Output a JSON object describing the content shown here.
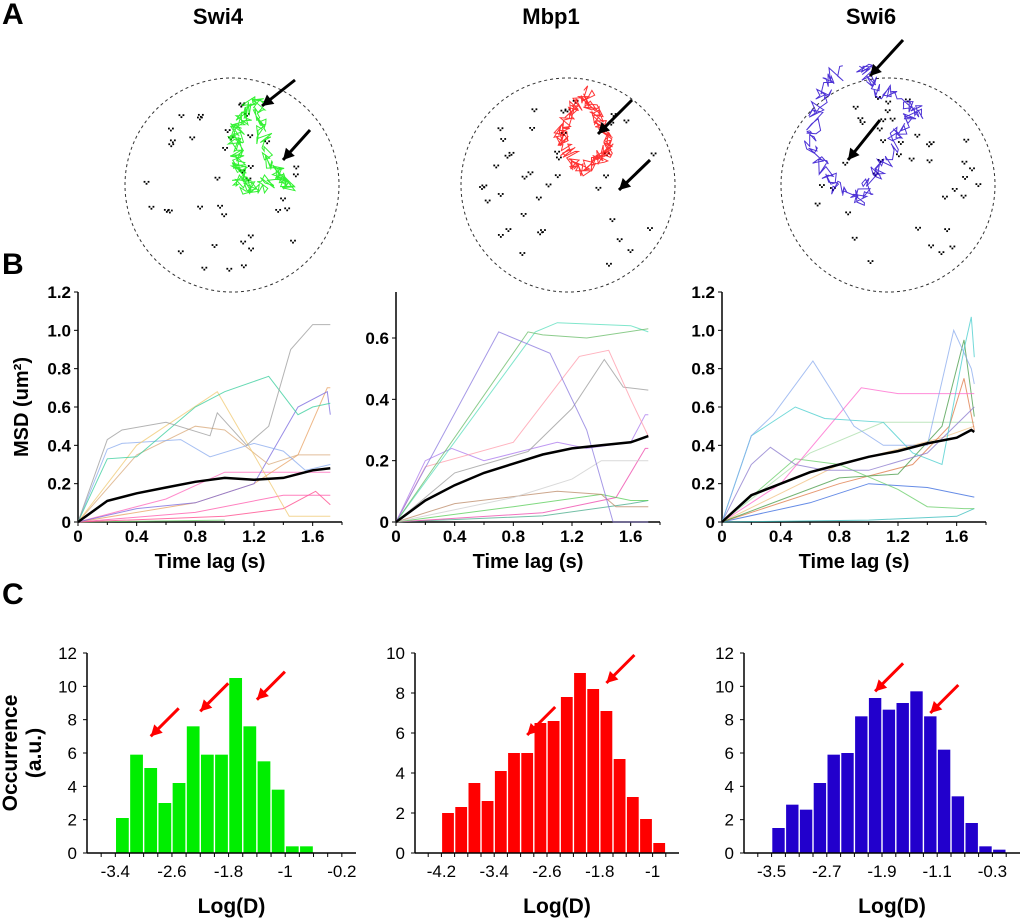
{
  "panels": {
    "A": "A",
    "B": "B",
    "C": "C"
  },
  "proteins": [
    "Swi4",
    "Mbp1",
    "Swi6"
  ],
  "colors": {
    "Swi4": "#00ee00",
    "Mbp1": "#ff0000",
    "Swi6": "#2200cc",
    "arrow_red": "#ff0000",
    "mean": "#000000"
  },
  "chart_data": [
    {
      "type": "scatter",
      "panel": "A",
      "title": "Swi4",
      "description": "Single-molecule track (green) over nuclear outline (dashed circle) with black localization spots; 2 arrows"
    },
    {
      "type": "scatter",
      "panel": "A",
      "title": "Mbp1",
      "description": "Single-molecule track (red) over nuclear outline with black localization spots; 2 arrows"
    },
    {
      "type": "scatter",
      "panel": "A",
      "title": "Swi6",
      "description": "Single-molecule track (blue) over nuclear outline with black localization spots; 2 arrows"
    },
    {
      "type": "line",
      "panel": "B",
      "protein": "Swi4",
      "xlabel": "Time lag (s)",
      "ylabel": "MSD (um²)",
      "xlim": [
        0,
        1.8
      ],
      "ylim": [
        0,
        1.2
      ],
      "xticks": [
        "0",
        "0.4",
        "0.8",
        "1.2",
        "1.6"
      ],
      "yticks": [
        "0",
        "0.2",
        "0.4",
        "0.6",
        "0.8",
        "1.0",
        "1.2"
      ],
      "series": [
        {
          "name": "mean",
          "color": "#000000",
          "x": [
            0,
            0.2,
            0.4,
            0.6,
            0.8,
            1.0,
            1.2,
            1.4,
            1.6,
            1.72
          ],
          "y": [
            0,
            0.11,
            0.15,
            0.18,
            0.21,
            0.23,
            0.22,
            0.23,
            0.27,
            0.28
          ]
        },
        {
          "name": "track-gray",
          "color": "#999999",
          "x": [
            0,
            0.2,
            0.3,
            0.6,
            0.9,
            0.95,
            1.15,
            1.3,
            1.45,
            1.6,
            1.72
          ],
          "y": [
            0,
            0.43,
            0.48,
            0.52,
            0.45,
            0.57,
            0.4,
            0.5,
            0.9,
            1.03,
            1.03
          ]
        },
        {
          "name": "track-teal",
          "color": "#33cc99",
          "x": [
            0,
            0.2,
            0.4,
            0.8,
            1.0,
            1.3,
            1.5,
            1.6,
            1.72
          ],
          "y": [
            0,
            0.33,
            0.34,
            0.6,
            0.68,
            0.76,
            0.56,
            0.6,
            0.62
          ]
        },
        {
          "name": "track-yellow",
          "color": "#f0c870",
          "x": [
            0,
            0.4,
            0.95,
            1.2,
            1.44,
            1.72
          ],
          "y": [
            0,
            0.4,
            0.68,
            0.35,
            0.03,
            0.03
          ]
        },
        {
          "name": "track-lightblue",
          "color": "#88aaee",
          "x": [
            0,
            0.2,
            0.3,
            0.7,
            0.9,
            1.2,
            1.4,
            1.55,
            1.72
          ],
          "y": [
            0,
            0.38,
            0.41,
            0.43,
            0.34,
            0.41,
            0.37,
            0.27,
            0.3
          ]
        },
        {
          "name": "track-tan",
          "color": "#d8a878",
          "x": [
            0,
            0.4,
            0.8,
            1.0,
            1.3,
            1.5,
            1.72
          ],
          "y": [
            0,
            0.35,
            0.5,
            0.48,
            0.3,
            0.35,
            0.35
          ]
        },
        {
          "name": "track-purple",
          "color": "#7766dd",
          "x": [
            0,
            0.4,
            0.8,
            1.2,
            1.5,
            1.7,
            1.72
          ],
          "y": [
            0,
            0.07,
            0.1,
            0.2,
            0.6,
            0.68,
            0.56
          ]
        },
        {
          "name": "track-orange",
          "color": "#e8a060",
          "x": [
            0,
            0.8,
            1.2,
            1.5,
            1.7,
            1.72
          ],
          "y": [
            0,
            0.1,
            0.2,
            0.35,
            0.7,
            0.7
          ]
        },
        {
          "name": "track-pink1",
          "color": "#ff66bb",
          "x": [
            0,
            0.6,
            1.0,
            1.72
          ],
          "y": [
            0,
            0.12,
            0.26,
            0.26
          ]
        },
        {
          "name": "track-pink2",
          "color": "#ff55aa",
          "x": [
            0,
            0.8,
            1.4,
            1.72
          ],
          "y": [
            0,
            0.05,
            0.14,
            0.14
          ]
        },
        {
          "name": "track-pink3",
          "color": "#ff4488",
          "x": [
            0,
            1.0,
            1.4,
            1.62,
            1.72
          ],
          "y": [
            0,
            0.03,
            0.07,
            0.16,
            0.09
          ]
        },
        {
          "name": "track-green",
          "color": "#66cc66",
          "x": [
            0,
            1.0
          ],
          "y": [
            0,
            0.01
          ]
        }
      ]
    },
    {
      "type": "line",
      "panel": "B",
      "protein": "Mbp1",
      "xlabel": "Time lag (s)",
      "ylabel": "",
      "xlim": [
        0,
        1.8
      ],
      "ylim": [
        0,
        0.75
      ],
      "xticks": [
        "0",
        "0.4",
        "0.8",
        "1.2",
        "1.6"
      ],
      "yticks": [
        "0",
        "0.2",
        "0.4",
        "0.6"
      ],
      "series": [
        {
          "name": "mean",
          "color": "#000000",
          "x": [
            0,
            0.2,
            0.4,
            0.6,
            0.8,
            1.0,
            1.2,
            1.4,
            1.6,
            1.72
          ],
          "y": [
            0,
            0.07,
            0.12,
            0.16,
            0.19,
            0.22,
            0.24,
            0.25,
            0.26,
            0.28
          ]
        },
        {
          "name": "track-purple",
          "color": "#8877dd",
          "x": [
            0,
            0.7,
            1.05,
            1.3,
            1.48,
            1.72
          ],
          "y": [
            0,
            0.62,
            0.55,
            0.3,
            0,
            0
          ]
        },
        {
          "name": "track-green1",
          "color": "#66bb66",
          "x": [
            0,
            0.9,
            1.0,
            1.3,
            1.72
          ],
          "y": [
            0,
            0.62,
            0.61,
            0.6,
            0.63
          ]
        },
        {
          "name": "track-cyan",
          "color": "#55ddbb",
          "x": [
            0,
            0.95,
            1.1,
            1.6,
            1.72
          ],
          "y": [
            0,
            0.62,
            0.65,
            0.64,
            0.62
          ]
        },
        {
          "name": "track-pink",
          "color": "#ff99aa",
          "x": [
            0,
            0.2,
            0.8,
            1.25,
            1.45,
            1.6,
            1.72
          ],
          "y": [
            0,
            0.18,
            0.26,
            0.54,
            0.56,
            0.4,
            0.28
          ]
        },
        {
          "name": "track-gray",
          "color": "#999999",
          "x": [
            0,
            0.4,
            0.9,
            1.2,
            1.42,
            1.55,
            1.72
          ],
          "y": [
            0,
            0.16,
            0.23,
            0.37,
            0.53,
            0.44,
            0.43
          ]
        },
        {
          "name": "track-violet",
          "color": "#aa77ee",
          "x": [
            0,
            0.2,
            0.38,
            0.6,
            1.1,
            1.3,
            1.6,
            1.7,
            1.72
          ],
          "y": [
            0,
            0.2,
            0.24,
            0.2,
            0.26,
            0.24,
            0.26,
            0.35,
            0.35
          ]
        },
        {
          "name": "track-lightgray",
          "color": "#cccccc",
          "x": [
            0,
            0.8,
            1.2,
            1.4,
            1.72
          ],
          "y": [
            0,
            0.08,
            0.14,
            0.2,
            0.2
          ]
        },
        {
          "name": "track-brown",
          "color": "#bb8866",
          "x": [
            0,
            0.4,
            1.1,
            1.4,
            1.5,
            1.72
          ],
          "y": [
            0,
            0.06,
            0.1,
            0.09,
            0.05,
            0.05
          ]
        },
        {
          "name": "track-green2",
          "color": "#55cc55",
          "x": [
            0,
            0.8,
            1.4,
            1.6,
            1.72
          ],
          "y": [
            0,
            0.05,
            0.09,
            0.07,
            0.07
          ]
        },
        {
          "name": "track-magenta",
          "color": "#ee44aa",
          "x": [
            0,
            1.0,
            1.5,
            1.7,
            1.72
          ],
          "y": [
            0,
            0.03,
            0.08,
            0.24,
            0.24
          ]
        },
        {
          "name": "track-teal",
          "color": "#44aa88",
          "x": [
            0,
            1.0,
            1.6,
            1.72
          ],
          "y": [
            0,
            0.02,
            0.06,
            0.07
          ]
        }
      ]
    },
    {
      "type": "line",
      "panel": "B",
      "protein": "Swi6",
      "xlabel": "Time lag (s)",
      "ylabel": "",
      "xlim": [
        0,
        1.8
      ],
      "ylim": [
        0,
        1.2
      ],
      "xticks": [
        "0",
        "0.4",
        "0.8",
        "1.2",
        "1.6"
      ],
      "yticks": [
        "0",
        "0.2",
        "0.4",
        "0.6",
        "0.8",
        "1.0",
        "1.2"
      ],
      "series": [
        {
          "name": "mean",
          "color": "#000000",
          "x": [
            0,
            0.2,
            0.4,
            0.6,
            0.8,
            1.0,
            1.2,
            1.4,
            1.6,
            1.7,
            1.72
          ],
          "y": [
            0,
            0.14,
            0.2,
            0.26,
            0.3,
            0.34,
            0.37,
            0.41,
            0.44,
            0.48,
            0.47
          ]
        },
        {
          "name": "track-lightblue",
          "color": "#88aaee",
          "x": [
            0,
            0.2,
            0.35,
            0.62,
            0.9,
            1.1,
            1.4,
            1.58,
            1.7,
            1.72
          ],
          "y": [
            0,
            0.45,
            0.56,
            0.84,
            0.5,
            0.4,
            0.4,
            1.0,
            0.8,
            0.72
          ]
        },
        {
          "name": "track-cyan",
          "color": "#44cccc",
          "x": [
            0,
            0.2,
            0.5,
            0.7,
            1.1,
            1.3,
            1.5,
            1.65,
            1.7,
            1.72
          ],
          "y": [
            0,
            0.45,
            0.6,
            0.54,
            0.52,
            0.36,
            0.3,
            0.9,
            1.07,
            0.86
          ]
        },
        {
          "name": "track-pink",
          "color": "#ff66cc",
          "x": [
            0,
            0.4,
            0.95,
            1.2,
            1.72
          ],
          "y": [
            0,
            0.2,
            0.7,
            0.67,
            0.67
          ]
        },
        {
          "name": "track-purple",
          "color": "#8877cc",
          "x": [
            0,
            0.2,
            0.33,
            0.5,
            0.7,
            1.0,
            1.4,
            1.72
          ],
          "y": [
            0,
            0.3,
            0.39,
            0.3,
            0.27,
            0.27,
            0.36,
            0.6
          ]
        },
        {
          "name": "track-green",
          "color": "#66cc66",
          "x": [
            0,
            0.5,
            0.8,
            1.2,
            1.4,
            1.65,
            1.72
          ],
          "y": [
            0,
            0.33,
            0.3,
            0.17,
            0.08,
            0.07,
            0.07
          ]
        },
        {
          "name": "track-darkgreen",
          "color": "#449944",
          "x": [
            0,
            0.8,
            1.2,
            1.5,
            1.65,
            1.72
          ],
          "y": [
            0,
            0.23,
            0.25,
            0.5,
            0.95,
            0.55
          ]
        },
        {
          "name": "track-orange",
          "color": "#dd7744",
          "x": [
            0,
            0.8,
            1.3,
            1.55,
            1.65,
            1.72
          ],
          "y": [
            0,
            0.2,
            0.3,
            0.5,
            0.75,
            0.48
          ]
        },
        {
          "name": "track-blue",
          "color": "#3366dd",
          "x": [
            0,
            0.6,
            1.0,
            1.4,
            1.72
          ],
          "y": [
            0,
            0.1,
            0.2,
            0.18,
            0.13
          ]
        },
        {
          "name": "track-paleorange",
          "color": "#f0c080",
          "x": [
            0,
            0.4,
            0.8,
            1.2,
            1.5,
            1.72
          ],
          "y": [
            0,
            0.15,
            0.3,
            0.38,
            0.44,
            0.5
          ]
        },
        {
          "name": "track-palegreen",
          "color": "#aaddaa",
          "x": [
            0,
            0.6,
            1.1,
            1.72
          ],
          "y": [
            0,
            0.36,
            0.52,
            0.52
          ]
        },
        {
          "name": "track-teal",
          "color": "#33bbbb",
          "x": [
            0,
            1.0,
            1.6,
            1.72
          ],
          "y": [
            0,
            0.01,
            0.03,
            0.07
          ]
        }
      ]
    },
    {
      "type": "bar",
      "panel": "C",
      "protein": "Swi4",
      "xlabel": "Log(D)",
      "ylabel": "Occurrence (a.u.)",
      "xlim": [
        -3.8,
        0
      ],
      "ylim": [
        0,
        12
      ],
      "xticks": [
        "-3.4",
        "-2.6",
        "-1.8",
        "-1",
        "-0.2"
      ],
      "yticks": [
        "0",
        "2",
        "4",
        "6",
        "8",
        "10",
        "12"
      ],
      "bin_width": 0.2,
      "bin_starts": [
        -3.4,
        -3.2,
        -3.0,
        -2.8,
        -2.6,
        -2.4,
        -2.2,
        -2.0,
        -1.8,
        -1.6,
        -1.4,
        -1.2,
        -1.0,
        -0.8
      ],
      "values": [
        2.1,
        5.9,
        5.1,
        3.0,
        4.2,
        7.6,
        5.9,
        5.9,
        10.5,
        7.6,
        5.5,
        3.8,
        0.4,
        0.4
      ],
      "arrows": [
        {
          "x": -2.9,
          "y": 7.0
        },
        {
          "x": -2.2,
          "y": 8.5
        },
        {
          "x": -1.4,
          "y": 9.2
        }
      ],
      "color": "#00ee00"
    },
    {
      "type": "bar",
      "panel": "C",
      "protein": "Mbp1",
      "xlabel": "Log(D)",
      "ylabel": "",
      "xlim": [
        -4.6,
        -0.6
      ],
      "ylim": [
        0,
        10
      ],
      "xticks": [
        "-4.2",
        "-3.4",
        "-2.6",
        "-1.8",
        "-1"
      ],
      "yticks": [
        "0",
        "2",
        "4",
        "6",
        "8",
        "10"
      ],
      "bin_width": 0.2,
      "bin_starts": [
        -4.2,
        -4.0,
        -3.8,
        -3.6,
        -3.4,
        -3.2,
        -3.0,
        -2.8,
        -2.6,
        -2.4,
        -2.2,
        -2.0,
        -1.8,
        -1.6,
        -1.4,
        -1.2,
        -1.0,
        -0.8
      ],
      "values": [
        2.0,
        2.3,
        3.5,
        2.6,
        4.1,
        5.0,
        5.0,
        6.5,
        6.6,
        7.8,
        9.0,
        8.2,
        7.1,
        4.7,
        2.8,
        1.7,
        0.5,
        0
      ],
      "arrows": [
        {
          "x": -2.9,
          "y": 5.9
        },
        {
          "x": -1.7,
          "y": 8.5
        }
      ],
      "color": "#ff0000"
    },
    {
      "type": "bar",
      "panel": "C",
      "protein": "Swi6",
      "xlabel": "Log(D)",
      "ylabel": "",
      "xlim": [
        -3.9,
        0.1
      ],
      "ylim": [
        0,
        12
      ],
      "xticks": [
        "-3.5",
        "-2.7",
        "-1.9",
        "-1.1",
        "-0.3"
      ],
      "yticks": [
        "0",
        "2",
        "4",
        "6",
        "8",
        "10",
        "12"
      ],
      "bin_width": 0.2,
      "bin_starts": [
        -3.5,
        -3.3,
        -3.1,
        -2.9,
        -2.7,
        -2.5,
        -2.3,
        -2.1,
        -1.9,
        -1.7,
        -1.5,
        -1.3,
        -1.1,
        -0.9,
        -0.7,
        -0.5,
        -0.3,
        -0.1
      ],
      "values": [
        1.5,
        2.9,
        2.6,
        4.2,
        5.9,
        6.0,
        8.2,
        9.3,
        8.6,
        9.0,
        9.7,
        8.2,
        6.2,
        3.4,
        1.8,
        0.4,
        0.2,
        0
      ],
      "arrows": [
        {
          "x": -2.0,
          "y": 9.7
        },
        {
          "x": -1.2,
          "y": 8.4
        }
      ],
      "color": "#2200cc"
    }
  ]
}
